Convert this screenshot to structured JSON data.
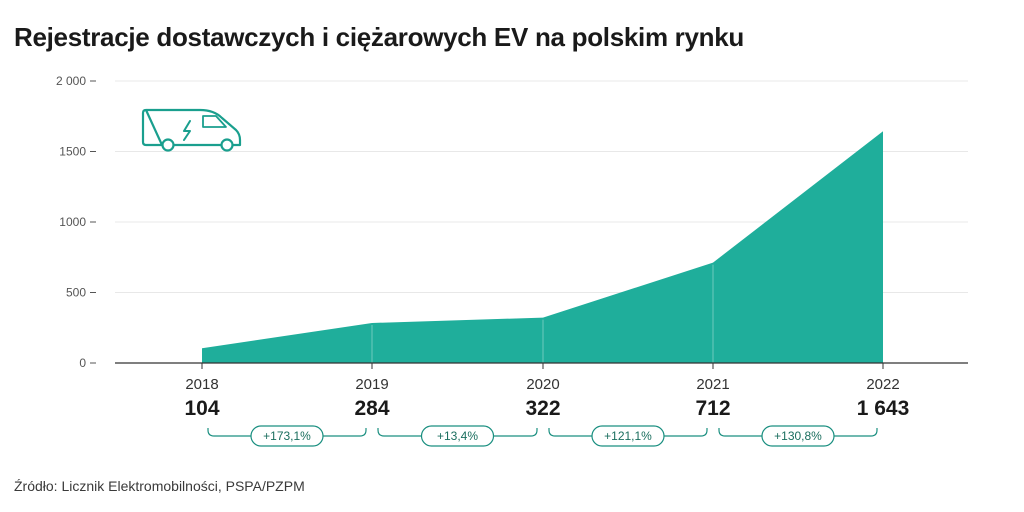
{
  "title": "Rejestracje dostawczych i ciężarowych EV na polskim rynku",
  "source": "Źródło: Licznik Elektromobilności, PSPA/PZPM",
  "colors": {
    "area": "#1fae9b",
    "accent": "#1a8f80",
    "grid": "#e8e8e8",
    "axis": "#555555"
  },
  "icon": "electric-van-icon",
  "chart_data": {
    "type": "area",
    "title": "Rejestracje dostawczych i ciężarowych EV na polskim rynku",
    "x": [
      "2018",
      "2019",
      "2020",
      "2021",
      "2022"
    ],
    "values": [
      104,
      284,
      322,
      712,
      1643
    ],
    "value_labels": [
      "104",
      "284",
      "322",
      "712",
      "1 643"
    ],
    "y_tick_labels": [
      "0",
      "500",
      "1000",
      "1500",
      "2 000"
    ],
    "y_ticks": [
      0,
      500,
      1000,
      1500,
      2000
    ],
    "ylim": [
      0,
      2000
    ],
    "growth_labels": [
      "+173,1%",
      "+13,4%",
      "+121,1%",
      "+130,8%"
    ],
    "grid": true,
    "legend": "none"
  }
}
